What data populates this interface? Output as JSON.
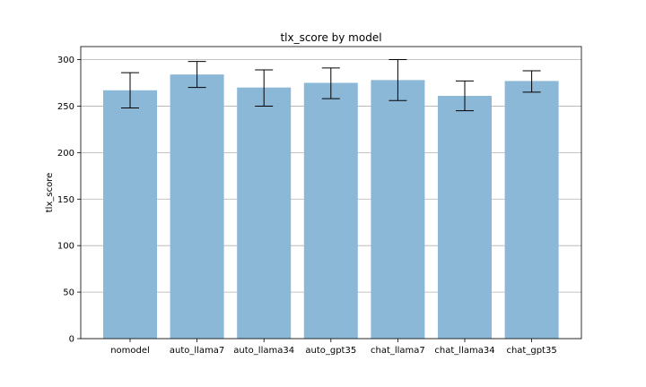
{
  "chart_data": {
    "type": "bar",
    "title": "tlx_score by model",
    "xlabel": "",
    "ylabel": "tlx_score",
    "categories": [
      "nomodel",
      "auto_llama7",
      "auto_llama34",
      "auto_gpt35",
      "chat_llama7",
      "chat_llama34",
      "chat_gpt35"
    ],
    "values": [
      267,
      284,
      270,
      275,
      278,
      261,
      277
    ],
    "error_low": [
      248,
      270,
      250,
      258,
      256,
      245,
      265
    ],
    "error_high": [
      286,
      298,
      289,
      291,
      300,
      277,
      288
    ],
    "ylim": [
      0,
      314
    ],
    "yticks": [
      0,
      50,
      100,
      150,
      200,
      250,
      300
    ],
    "grid": "y",
    "bar_color": "#8cb8d8",
    "error_color": "#000000",
    "legend": "none"
  }
}
